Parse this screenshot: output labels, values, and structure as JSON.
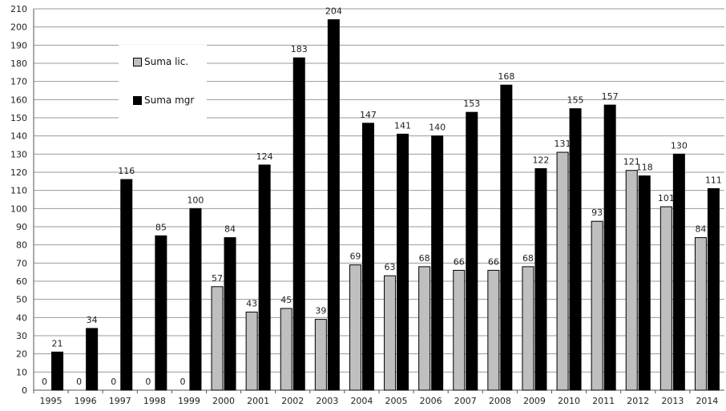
{
  "chart_data": {
    "type": "bar",
    "categories": [
      "1995",
      "1996",
      "1997",
      "1998",
      "1999",
      "2000",
      "2001",
      "2002",
      "2003",
      "2004",
      "2005",
      "2006",
      "2007",
      "2008",
      "2009",
      "2010",
      "2011",
      "2012",
      "2013",
      "2014"
    ],
    "series": [
      {
        "name": "Suma lic.",
        "color": "#bfbfbf",
        "values": [
          0,
          0,
          0,
          0,
          0,
          57,
          43,
          45,
          39,
          69,
          63,
          68,
          66,
          66,
          68,
          131,
          93,
          121,
          101,
          84
        ]
      },
      {
        "name": "Suma mgr",
        "color": "#000000",
        "values": [
          21,
          34,
          116,
          85,
          100,
          84,
          124,
          183,
          204,
          147,
          141,
          140,
          153,
          168,
          122,
          155,
          157,
          118,
          130,
          111
        ]
      }
    ],
    "ylim": [
      0,
      210
    ],
    "ytick_step": 10,
    "grid": true,
    "legend_position": "top-left"
  }
}
